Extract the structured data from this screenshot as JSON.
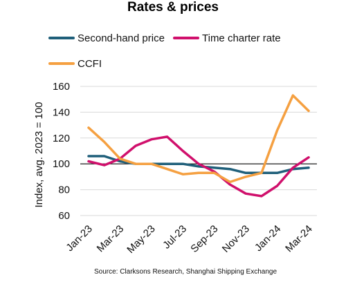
{
  "chart_data": {
    "type": "line",
    "title": "Rates & prices",
    "ylabel": "Index, avg. 2023 = 100",
    "xlabel": "",
    "ylim": [
      60,
      160
    ],
    "yticks": [
      60,
      80,
      100,
      120,
      140,
      160
    ],
    "x": [
      "Jan-23",
      "Feb-23",
      "Mar-23",
      "Apr-23",
      "May-23",
      "Jun-23",
      "Jul-23",
      "Aug-23",
      "Sep-23",
      "Oct-23",
      "Nov-23",
      "Dec-23",
      "Jan-24",
      "Feb-24",
      "Mar-24"
    ],
    "x_tick_labels": [
      "Jan-23",
      "Mar-23",
      "May-23",
      "Jul-23",
      "Sep-23",
      "Nov-23",
      "Jan-24",
      "Mar-24"
    ],
    "grid": "horizontal",
    "legend_position": "top",
    "series": [
      {
        "name": "Second-hand price",
        "color": "#1f5f7a",
        "values": [
          106,
          106,
          102,
          100,
          100,
          100,
          100,
          98,
          97,
          96,
          93,
          93,
          93,
          96,
          97
        ]
      },
      {
        "name": "Time charter rate",
        "color": "#d0106c",
        "values": [
          102,
          99,
          104,
          114,
          119,
          121,
          110,
          100,
          94,
          84,
          77,
          75,
          83,
          97,
          105
        ]
      },
      {
        "name": "CCFI",
        "color": "#f5a041",
        "values": [
          128,
          117,
          104,
          100,
          100,
          96,
          92,
          93,
          93,
          86,
          90,
          93,
          126,
          153,
          141
        ]
      }
    ],
    "source": "Source: Clarksons Research, Shanghai Shipping Exchange"
  }
}
